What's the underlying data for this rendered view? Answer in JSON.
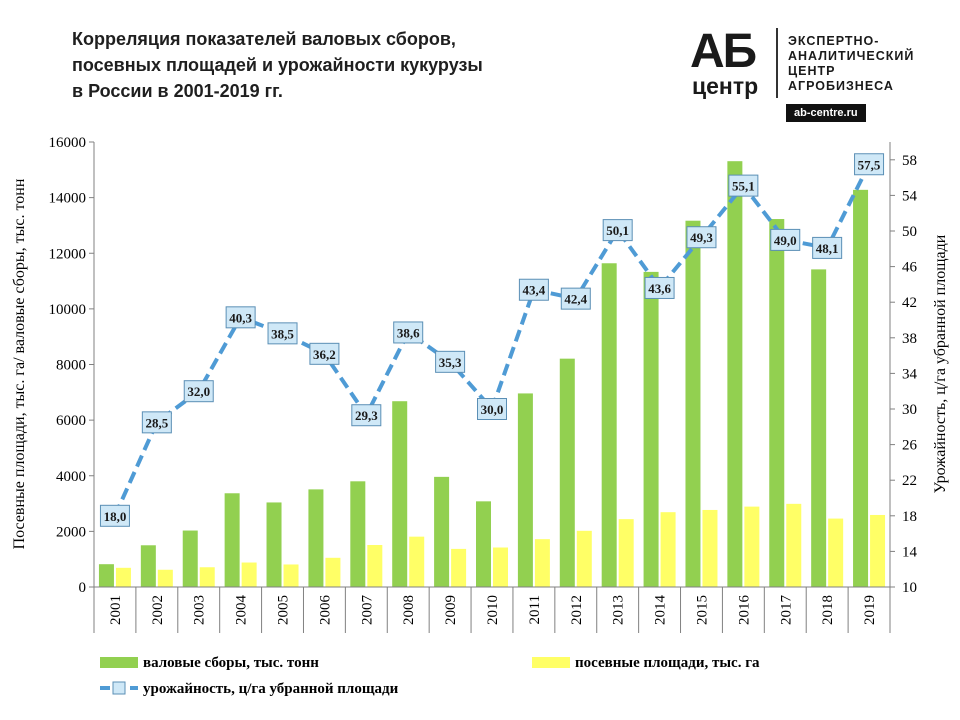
{
  "title": "Корреляция показателей валовых сборов,\nпосевных площадей и урожайности кукурузы\nв России в 2001-2019 гг.",
  "logo": {
    "main": "АБ",
    "sub": "центр",
    "text": "ЭКСПЕРТНО-\nАНАЛИТИЧЕСКИЙ\nЦЕНТР\nАГРОБИЗНЕСА",
    "site": "ab-centre.ru"
  },
  "colors": {
    "gross": "#92d050",
    "area": "#ffff66",
    "yield_line": "#4f9bd5",
    "marker_fill": "#cfe8f7",
    "marker_stroke": "#5b8fb5"
  },
  "chart_data": {
    "type": "bar",
    "categories": [
      "2001",
      "2002",
      "2003",
      "2004",
      "2005",
      "2006",
      "2007",
      "2008",
      "2009",
      "2010",
      "2011",
      "2012",
      "2013",
      "2014",
      "2015",
      "2016",
      "2017",
      "2018",
      "2019"
    ],
    "series": [
      {
        "name": "валовые сборы, тыс. тонн",
        "type": "bar",
        "axis": "left",
        "values": [
          820,
          1500,
          2030,
          3370,
          3040,
          3510,
          3800,
          6680,
          3960,
          3080,
          6960,
          8210,
          11640,
          11330,
          13170,
          15310,
          13230,
          11420,
          14280
        ]
      },
      {
        "name": "посевные площади, тыс. га",
        "type": "bar",
        "axis": "left",
        "values": [
          690,
          620,
          710,
          880,
          810,
          1050,
          1510,
          1810,
          1370,
          1420,
          1720,
          2020,
          2440,
          2690,
          2770,
          2890,
          2990,
          2460,
          2590
        ]
      },
      {
        "name": "урожайность, ц/га убранной площади",
        "type": "line",
        "axis": "right",
        "values": [
          18.0,
          28.5,
          32.0,
          40.3,
          38.5,
          36.2,
          29.3,
          38.6,
          35.3,
          30.0,
          43.4,
          42.4,
          50.1,
          43.6,
          49.3,
          55.1,
          49.0,
          48.1,
          57.5
        ],
        "labels": [
          "18,0",
          "28,5",
          "32,0",
          "40,3",
          "38,5",
          "36,2",
          "29,3",
          "38,6",
          "35,3",
          "30,0",
          "43,4",
          "42,4",
          "50,1",
          "43,6",
          "49,3",
          "55,1",
          "49,0",
          "48,1",
          "57,5"
        ]
      }
    ],
    "ylabel": "Посевные площади, тыс. га/ валовые сборы, тыс. тонн",
    "y2label": "Урожайность, ц/га убранной площади",
    "ylim": [
      0,
      16000
    ],
    "yticks": [
      0,
      2000,
      4000,
      6000,
      8000,
      10000,
      12000,
      14000,
      16000
    ],
    "y2lim": [
      10,
      60
    ],
    "y2ticks": [
      10,
      14,
      18,
      22,
      26,
      30,
      34,
      38,
      42,
      46,
      50,
      54,
      58
    ],
    "grid": false,
    "legend_position": "bottom"
  }
}
